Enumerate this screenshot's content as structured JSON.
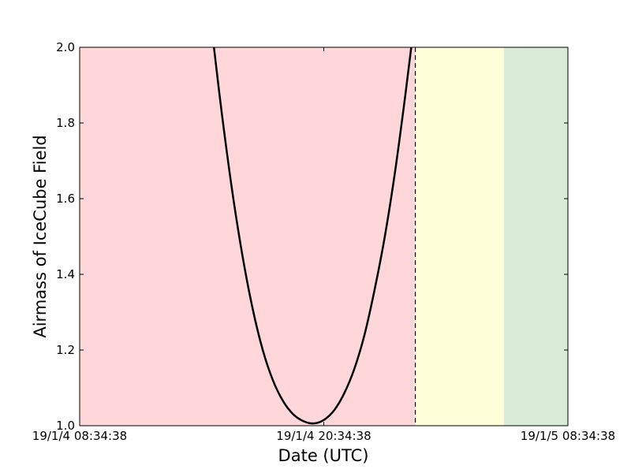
{
  "chart_data": {
    "type": "line",
    "title": "",
    "xlabel": "Date (UTC)",
    "ylabel": "Airmass of IceCube Field",
    "x_range_hours": [
      0,
      24
    ],
    "ylim": [
      1.0,
      2.0
    ],
    "x_ticks": [
      {
        "hours": 0,
        "label": "19/1/4 08:34:38"
      },
      {
        "hours": 12,
        "label": "19/1/4 20:34:38"
      },
      {
        "hours": 24,
        "label": "19/1/5 08:34:38"
      }
    ],
    "y_ticks": [
      {
        "value": 1.0,
        "label": "1.0"
      },
      {
        "value": 1.2,
        "label": "1.2"
      },
      {
        "value": 1.4,
        "label": "1.4"
      },
      {
        "value": 1.6,
        "label": "1.6"
      },
      {
        "value": 1.8,
        "label": "1.8"
      },
      {
        "value": 2.0,
        "label": "2.0"
      }
    ],
    "shaded_regions": [
      {
        "name": "red-region",
        "start_hours": 0,
        "end_hours": 16.5,
        "color": "#ffd6d9"
      },
      {
        "name": "yellow-region",
        "start_hours": 16.5,
        "end_hours": 20.85,
        "color": "#ffffd9"
      },
      {
        "name": "green-region",
        "start_hours": 20.85,
        "end_hours": 24,
        "color": "#d8ecd8"
      }
    ],
    "vertical_line_hours": 16.5,
    "series": [
      {
        "color": "#000000",
        "x": [
          6.6,
          7.0,
          7.5,
          8.0,
          8.5,
          9.0,
          9.5,
          10.0,
          10.5,
          11.0,
          11.5,
          12.0,
          12.5,
          13.0,
          13.5,
          14.0,
          14.5,
          15.0,
          15.5,
          16.0,
          16.3
        ],
        "y": [
          2.0,
          1.82,
          1.62,
          1.45,
          1.31,
          1.2,
          1.12,
          1.065,
          1.03,
          1.012,
          1.006,
          1.015,
          1.04,
          1.085,
          1.15,
          1.24,
          1.36,
          1.5,
          1.67,
          1.87,
          2.0
        ]
      }
    ]
  }
}
